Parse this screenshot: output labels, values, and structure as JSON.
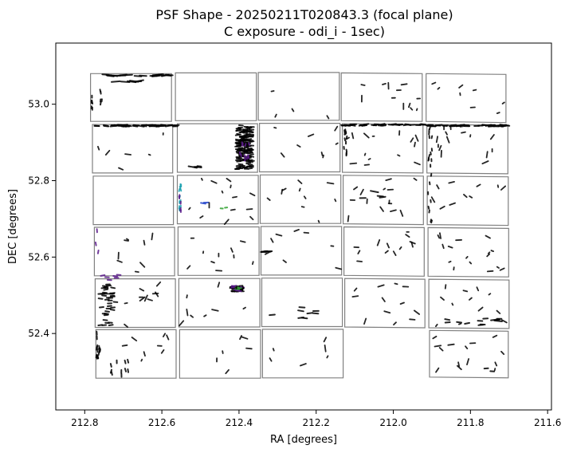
{
  "chart_data": {
    "type": "scatter",
    "title": "PSF Shape - 20250211T020843.3 (focal plane)",
    "subtitle": "C exposure - odi_i - 1sec)",
    "xlabel": "RA [degrees]",
    "ylabel": "DEC [degrees]",
    "xlim": [
      212.875,
      211.59
    ],
    "ylim": [
      52.2,
      53.16
    ],
    "x_inverted": true,
    "x_ticks": [
      "212.8",
      "212.6",
      "212.4",
      "212.2",
      "212.0",
      "211.8",
      "211.6"
    ],
    "y_ticks": [
      "52.4",
      "52.6",
      "52.8",
      "53.0"
    ],
    "grid": false,
    "colors": {
      "frame": "#000000",
      "ccd_outline": "#808080",
      "whisker": "#000000",
      "purple": "#5a1a8a",
      "blue": "#2244cc",
      "green": "#2ca02c",
      "teal": "#1aa0b0"
    },
    "ccd_rows": [
      [
        212.795,
        212.585,
        212.33,
        212.122,
        211.915
      ],
      [
        212.79,
        212.58,
        212.328,
        212.12,
        211.913
      ]
    ],
    "ccd_outlines": [
      [
        [
          212.785,
          53.08
        ],
        [
          212.575,
          53.08
        ],
        [
          212.575,
          52.955
        ],
        [
          212.785,
          52.955
        ]
      ],
      [
        [
          212.565,
          53.082
        ],
        [
          212.355,
          53.082
        ],
        [
          212.355,
          52.957
        ],
        [
          212.565,
          52.957
        ]
      ],
      [
        [
          212.35,
          53.083
        ],
        [
          212.14,
          53.083
        ],
        [
          212.14,
          52.958
        ],
        [
          212.35,
          52.958
        ]
      ],
      [
        [
          212.135,
          53.082
        ],
        [
          211.925,
          53.08
        ],
        [
          211.925,
          52.955
        ],
        [
          212.135,
          52.957
        ]
      ],
      [
        [
          211.915,
          53.08
        ],
        [
          211.708,
          53.078
        ],
        [
          211.708,
          52.952
        ],
        [
          211.915,
          52.955
        ]
      ],
      [
        [
          212.78,
          52.947
        ],
        [
          212.572,
          52.947
        ],
        [
          212.572,
          52.82
        ],
        [
          212.78,
          52.82
        ]
      ],
      [
        [
          212.56,
          52.949
        ],
        [
          212.352,
          52.949
        ],
        [
          212.352,
          52.822
        ],
        [
          212.56,
          52.822
        ]
      ],
      [
        [
          212.347,
          52.95
        ],
        [
          212.138,
          52.95
        ],
        [
          212.138,
          52.823
        ],
        [
          212.347,
          52.823
        ]
      ],
      [
        [
          212.132,
          52.949
        ],
        [
          211.923,
          52.947
        ],
        [
          211.923,
          52.82
        ],
        [
          212.132,
          52.822
        ]
      ],
      [
        [
          211.913,
          52.947
        ],
        [
          211.703,
          52.945
        ],
        [
          211.703,
          52.818
        ],
        [
          211.913,
          52.82
        ]
      ],
      [
        [
          212.778,
          52.812
        ],
        [
          212.57,
          52.812
        ],
        [
          212.57,
          52.685
        ],
        [
          212.778,
          52.685
        ]
      ],
      [
        [
          212.56,
          52.814
        ],
        [
          212.35,
          52.814
        ],
        [
          212.35,
          52.687
        ],
        [
          212.56,
          52.687
        ]
      ],
      [
        [
          212.345,
          52.815
        ],
        [
          212.136,
          52.815
        ],
        [
          212.136,
          52.688
        ],
        [
          212.345,
          52.688
        ]
      ],
      [
        [
          212.13,
          52.814
        ],
        [
          211.922,
          52.812
        ],
        [
          211.922,
          52.685
        ],
        [
          212.13,
          52.687
        ]
      ],
      [
        [
          211.912,
          52.812
        ],
        [
          211.702,
          52.81
        ],
        [
          211.702,
          52.683
        ],
        [
          211.912,
          52.685
        ]
      ],
      [
        [
          212.775,
          52.678
        ],
        [
          212.567,
          52.678
        ],
        [
          212.567,
          52.551
        ],
        [
          212.775,
          52.551
        ]
      ],
      [
        [
          212.558,
          52.679
        ],
        [
          212.348,
          52.679
        ],
        [
          212.348,
          52.552
        ],
        [
          212.558,
          52.552
        ]
      ],
      [
        [
          212.343,
          52.68
        ],
        [
          212.134,
          52.68
        ],
        [
          212.134,
          52.553
        ],
        [
          212.343,
          52.553
        ]
      ],
      [
        [
          212.128,
          52.679
        ],
        [
          211.92,
          52.677
        ],
        [
          211.92,
          52.55
        ],
        [
          212.128,
          52.552
        ]
      ],
      [
        [
          211.91,
          52.677
        ],
        [
          211.701,
          52.675
        ],
        [
          211.701,
          52.548
        ],
        [
          211.91,
          52.55
        ]
      ],
      [
        [
          212.773,
          52.543
        ],
        [
          212.565,
          52.543
        ],
        [
          212.565,
          52.416
        ],
        [
          212.773,
          52.416
        ]
      ],
      [
        [
          212.556,
          52.544
        ],
        [
          212.346,
          52.544
        ],
        [
          212.346,
          52.417
        ],
        [
          212.556,
          52.417
        ]
      ],
      [
        [
          212.341,
          52.545
        ],
        [
          212.132,
          52.545
        ],
        [
          212.132,
          52.418
        ],
        [
          212.341,
          52.418
        ]
      ],
      [
        [
          212.126,
          52.544
        ],
        [
          211.918,
          52.542
        ],
        [
          211.918,
          52.415
        ],
        [
          212.126,
          52.417
        ]
      ],
      [
        [
          211.908,
          52.542
        ],
        [
          211.7,
          52.54
        ],
        [
          211.7,
          52.413
        ],
        [
          211.908,
          52.415
        ]
      ],
      [
        [
          212.771,
          52.41
        ],
        [
          212.563,
          52.41
        ],
        [
          212.563,
          52.283
        ],
        [
          212.771,
          52.283
        ]
      ],
      [
        [
          212.554,
          52.41
        ],
        [
          212.344,
          52.41
        ],
        [
          212.344,
          52.283
        ],
        [
          212.554,
          52.283
        ]
      ],
      [
        [
          212.339,
          52.411
        ],
        [
          212.13,
          52.411
        ],
        [
          212.13,
          52.284
        ],
        [
          212.339,
          52.284
        ]
      ],
      [
        [
          211.906,
          52.408
        ],
        [
          211.702,
          52.406
        ],
        [
          211.702,
          52.284
        ],
        [
          211.906,
          52.286
        ]
      ]
    ],
    "whisker_regions": [
      {
        "ra": [
          212.78,
          212.58
        ],
        "dec": [
          53.073,
          53.078
        ],
        "n": 20,
        "len": 0.018,
        "color": "whisker"
      },
      {
        "ra": [
          212.72,
          212.62
        ],
        "dec": [
          53.058,
          53.062
        ],
        "n": 6,
        "len": 0.022,
        "color": "whisker"
      },
      {
        "ra": [
          212.786,
          212.78
        ],
        "dec": [
          52.98,
          53.02
        ],
        "n": 6,
        "len": 0.006,
        "color": "whisker"
      },
      {
        "ra": [
          212.76,
          212.755
        ],
        "dec": [
          52.97,
          53.04
        ],
        "n": 5,
        "len": 0.006,
        "color": "whisker"
      },
      {
        "ra": [
          212.77,
          212.56
        ],
        "dec": [
          52.942,
          52.946
        ],
        "n": 50,
        "len": 0.012,
        "color": "whisker"
      },
      {
        "ra": [
          212.13,
          211.92
        ],
        "dec": [
          52.944,
          52.948
        ],
        "n": 40,
        "len": 0.012,
        "color": "whisker"
      },
      {
        "ra": [
          211.91,
          211.7
        ],
        "dec": [
          52.942,
          52.946
        ],
        "n": 45,
        "len": 0.012,
        "color": "whisker"
      },
      {
        "ra": [
          212.128,
          212.12
        ],
        "dec": [
          52.86,
          52.94
        ],
        "n": 12,
        "len": 0.006,
        "color": "whisker"
      },
      {
        "ra": [
          211.91,
          211.9
        ],
        "dec": [
          52.69,
          52.94
        ],
        "n": 20,
        "len": 0.006,
        "color": "whisker"
      },
      {
        "ra": [
          212.53,
          212.5
        ],
        "dec": [
          52.834,
          52.838
        ],
        "n": 6,
        "len": 0.01,
        "color": "whisker"
      },
      {
        "ra": [
          212.405,
          212.365
        ],
        "dec": [
          52.83,
          52.945
        ],
        "n": 160,
        "len": 0.01,
        "color": "whisker"
      },
      {
        "ra": [
          212.4,
          212.37
        ],
        "dec": [
          52.84,
          52.9
        ],
        "n": 12,
        "len": 0.006,
        "color": "purple"
      },
      {
        "ra": [
          212.555,
          212.55
        ],
        "dec": [
          52.72,
          52.81
        ],
        "n": 12,
        "len": 0.006,
        "color": "teal"
      },
      {
        "ra": [
          212.555,
          212.55
        ],
        "dec": [
          52.72,
          52.79
        ],
        "n": 5,
        "len": 0.006,
        "color": "purple"
      },
      {
        "ra": [
          212.505,
          212.485
        ],
        "dec": [
          52.74,
          52.75
        ],
        "n": 2,
        "len": 0.012,
        "color": "blue"
      },
      {
        "ra": [
          212.45,
          212.43
        ],
        "dec": [
          52.72,
          52.73
        ],
        "n": 2,
        "len": 0.006,
        "color": "green"
      },
      {
        "ra": [
          212.42,
          212.39
        ],
        "dec": [
          52.51,
          52.525
        ],
        "n": 30,
        "len": 0.008,
        "color": "whisker"
      },
      {
        "ra": [
          212.42,
          212.39
        ],
        "dec": [
          52.51,
          52.525
        ],
        "n": 10,
        "len": 0.008,
        "color": "purple"
      },
      {
        "ra": [
          212.41,
          212.39
        ],
        "dec": [
          52.515,
          52.525
        ],
        "n": 4,
        "len": 0.006,
        "color": "green"
      },
      {
        "ra": [
          212.34,
          212.3
        ],
        "dec": [
          52.611,
          52.615
        ],
        "n": 6,
        "len": 0.012,
        "color": "whisker"
      },
      {
        "ra": [
          212.775,
          212.765
        ],
        "dec": [
          52.6,
          52.68
        ],
        "n": 3,
        "len": 0.008,
        "color": "purple"
      },
      {
        "ra": [
          212.77,
          212.7
        ],
        "dec": [
          52.54,
          52.555
        ],
        "n": 6,
        "len": 0.01,
        "color": "purple"
      },
      {
        "ra": [
          212.76,
          212.72
        ],
        "dec": [
          52.42,
          52.53
        ],
        "n": 40,
        "len": 0.01,
        "color": "whisker"
      },
      {
        "ra": [
          212.77,
          212.76
        ],
        "dec": [
          52.33,
          52.41
        ],
        "n": 14,
        "len": 0.008,
        "color": "whisker"
      },
      {
        "ra": [
          212.74,
          212.68
        ],
        "dec": [
          52.29,
          52.33
        ],
        "n": 10,
        "len": 0.008,
        "color": "whisker"
      },
      {
        "ra": [
          212.33,
          212.2
        ],
        "dec": [
          52.44,
          52.47
        ],
        "n": 8,
        "len": 0.014,
        "color": "whisker"
      },
      {
        "ra": [
          211.88,
          211.72
        ],
        "dec": [
          52.42,
          52.44
        ],
        "n": 10,
        "len": 0.012,
        "color": "whisker"
      },
      {
        "ra": [
          211.74,
          211.69
        ],
        "dec": [
          52.432,
          52.437
        ],
        "n": 2,
        "len": 0.02,
        "color": "whisker"
      },
      {
        "ra": [
          211.76,
          211.74
        ],
        "dec": [
          52.3,
          52.31
        ],
        "n": 2,
        "len": 0.01,
        "color": "whisker"
      },
      {
        "ra": [
          212.1,
          211.95
        ],
        "dec": [
          52.74,
          52.76
        ],
        "n": 3,
        "len": 0.015,
        "color": "whisker"
      },
      {
        "ra": [
          212.05,
          212.04
        ],
        "dec": [
          52.77,
          52.775
        ],
        "n": 1,
        "len": 0.02,
        "color": "whisker"
      }
    ],
    "scatter_regions": [
      {
        "ra": [
          212.77,
          212.58
        ],
        "dec": [
          52.83,
          52.94
        ],
        "n": 6
      },
      {
        "ra": [
          212.55,
          212.36
        ],
        "dec": [
          52.69,
          52.81
        ],
        "n": 14
      },
      {
        "ra": [
          212.34,
          212.14
        ],
        "dec": [
          52.69,
          52.81
        ],
        "n": 10
      },
      {
        "ra": [
          212.12,
          211.93
        ],
        "dec": [
          52.69,
          52.81
        ],
        "n": 14
      },
      {
        "ra": [
          211.9,
          211.71
        ],
        "dec": [
          52.69,
          52.81
        ],
        "n": 10
      },
      {
        "ra": [
          212.55,
          212.36
        ],
        "dec": [
          52.56,
          52.67
        ],
        "n": 10
      },
      {
        "ra": [
          212.34,
          212.14
        ],
        "dec": [
          52.56,
          52.67
        ],
        "n": 8
      },
      {
        "ra": [
          212.12,
          211.93
        ],
        "dec": [
          52.56,
          52.67
        ],
        "n": 12
      },
      {
        "ra": [
          211.9,
          211.71
        ],
        "dec": [
          52.56,
          52.67
        ],
        "n": 16
      },
      {
        "ra": [
          212.76,
          212.58
        ],
        "dec": [
          52.56,
          52.67
        ],
        "n": 8
      },
      {
        "ra": [
          212.7,
          212.58
        ],
        "dec": [
          52.42,
          52.53
        ],
        "n": 10
      },
      {
        "ra": [
          212.55,
          212.36
        ],
        "dec": [
          52.42,
          52.53
        ],
        "n": 10
      },
      {
        "ra": [
          212.12,
          211.93
        ],
        "dec": [
          52.42,
          52.53
        ],
        "n": 12
      },
      {
        "ra": [
          211.9,
          211.71
        ],
        "dec": [
          52.42,
          52.53
        ],
        "n": 12
      },
      {
        "ra": [
          212.33,
          212.14
        ],
        "dec": [
          52.86,
          52.94
        ],
        "n": 8
      },
      {
        "ra": [
          212.12,
          211.93
        ],
        "dec": [
          52.83,
          52.94
        ],
        "n": 14
      },
      {
        "ra": [
          211.9,
          211.71
        ],
        "dec": [
          52.83,
          52.94
        ],
        "n": 14
      },
      {
        "ra": [
          212.13,
          211.93
        ],
        "dec": [
          52.96,
          53.07
        ],
        "n": 12
      },
      {
        "ra": [
          211.9,
          211.71
        ],
        "dec": [
          52.96,
          53.07
        ],
        "n": 8
      },
      {
        "ra": [
          212.33,
          212.14
        ],
        "dec": [
          52.96,
          53.07
        ],
        "n": 4
      },
      {
        "ra": [
          212.55,
          212.36
        ],
        "dec": [
          52.29,
          52.4
        ],
        "n": 6
      },
      {
        "ra": [
          212.33,
          212.14
        ],
        "dec": [
          52.29,
          52.4
        ],
        "n": 6
      },
      {
        "ra": [
          211.9,
          211.71
        ],
        "dec": [
          52.29,
          52.4
        ],
        "n": 14
      },
      {
        "ra": [
          212.7,
          212.58
        ],
        "dec": [
          52.29,
          52.4
        ],
        "n": 8
      }
    ]
  }
}
